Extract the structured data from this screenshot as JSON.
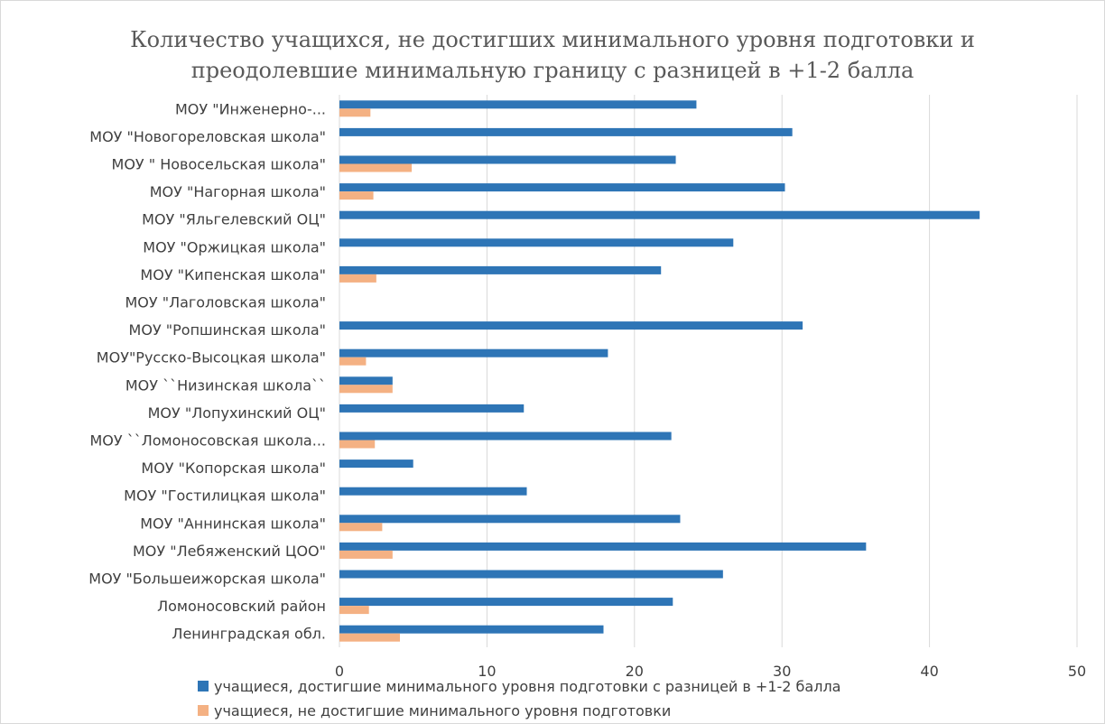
{
  "chart_data": {
    "type": "bar",
    "orientation": "horizontal",
    "title": "Количество учащихся, не достигших минимального уровня подготовки и преодолевшие минимальную границу с разницей в +1-2 балла",
    "title_lines": [
      "Количество учащихся, не достигших минимального уровня подготовки и",
      "преодолевшие минимальную границу с разницей в +1-2 балла"
    ],
    "categories": [
      "МОУ \"Инженерно-...",
      "МОУ \"Новогореловская  школа\"",
      "МОУ \" Новосельская школа\"",
      "МОУ \"Нагорная  школа\"",
      "МОУ \"Яльгелевский ОЦ\"",
      "МОУ \"Оржицкая  школа\"",
      "МОУ \"Кипенская  школа\"",
      "МОУ \"Лаголовская  школа\"",
      "МОУ \"Ропшинская  школа\"",
      "МОУ\"Русско-Высоцкая  школа\"",
      "МОУ ``Низинская  школа``",
      "МОУ \"Лопухинский ОЦ\"",
      "МОУ ``Ломоносовская  школа...",
      "МОУ \"Копорская  школа\"",
      "МОУ \"Гостилицкая  школа\"",
      "МОУ \"Аннинская  школа\"",
      "МОУ \"Лебяженский ЦОО\"",
      "МОУ \"Большеижорская  школа\"",
      "Ломоносовский  район",
      "Ленинградская обл."
    ],
    "series": [
      {
        "name": "учащиеся, достигшие минимального уровня подготовки с разницей в +1-2 балла",
        "color": "#2e75b6",
        "values": [
          24.2,
          30.7,
          22.8,
          30.2,
          43.4,
          26.7,
          21.8,
          0,
          31.4,
          18.2,
          3.6,
          12.5,
          22.5,
          5.0,
          12.7,
          23.1,
          35.7,
          26.0,
          22.6,
          17.9
        ]
      },
      {
        "name": "учащиеся, не достигшие минимального уровня подготовки",
        "color": "#f4b183",
        "values": [
          2.1,
          0,
          4.9,
          2.3,
          0,
          0,
          2.5,
          0,
          0,
          1.8,
          3.6,
          0,
          2.4,
          0,
          0,
          2.9,
          3.6,
          0,
          2.0,
          4.1
        ]
      }
    ],
    "xlim": [
      0,
      50
    ],
    "x_ticks": [
      "0",
      "10",
      "20",
      "30",
      "40",
      "50"
    ],
    "grid": true,
    "legend_position": "bottom"
  }
}
